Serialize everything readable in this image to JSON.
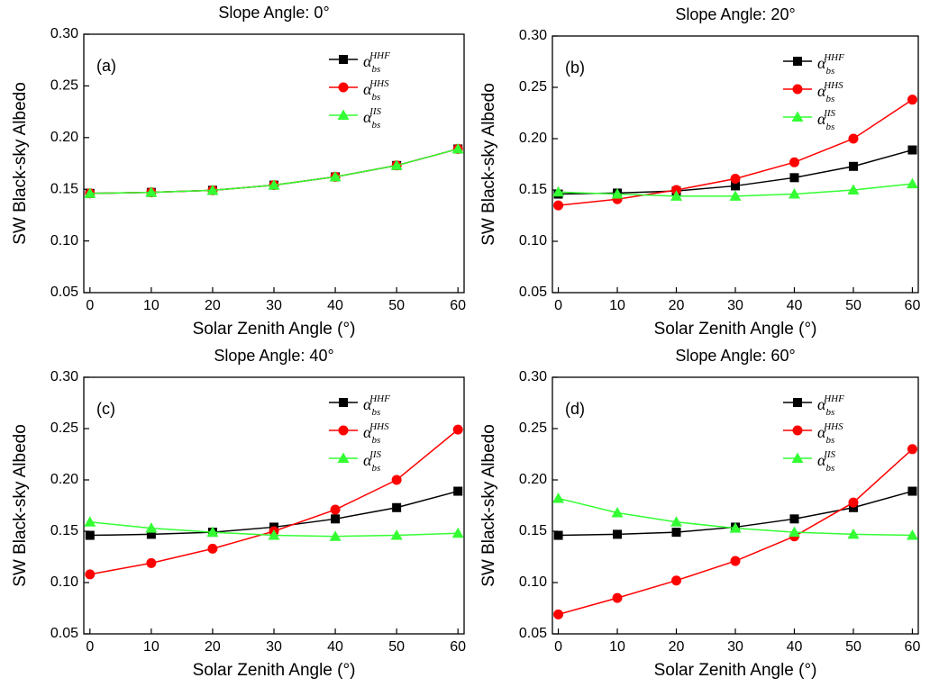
{
  "chart_data": [
    {
      "type": "line",
      "title": "Slope Angle: 0°",
      "panel_label": "(a)",
      "xlabel": "Solar Zenith Angle (°)",
      "ylabel": "SW Black-sky Albedo",
      "legend_symbol": "α",
      "legend_subscript": "bs",
      "legend": "upper right",
      "x": [
        0,
        10,
        20,
        30,
        40,
        50,
        60
      ],
      "xlim": [
        -1,
        61
      ],
      "xticks": [
        0,
        10,
        20,
        30,
        40,
        50,
        60
      ],
      "ylim": [
        0.05,
        0.3
      ],
      "yticks": [
        0.05,
        {
          "value": 0.1,
          "label": "0.10"
        },
        0.15,
        {
          "value": 0.2,
          "label": "0.20"
        },
        0.25,
        {
          "value": 0.3,
          "label": "0.30"
        }
      ],
      "series": [
        {
          "name": "HHF",
          "color": "#000000",
          "marker": "square",
          "values": [
            0.146,
            0.147,
            0.149,
            0.154,
            0.162,
            0.173,
            0.189
          ]
        },
        {
          "name": "HHS",
          "color": "#ff0000",
          "marker": "circle",
          "values": [
            0.146,
            0.147,
            0.149,
            0.154,
            0.162,
            0.173,
            0.189
          ]
        },
        {
          "name": "IIS",
          "color": "#33ff33",
          "marker": "triangle",
          "values": [
            0.146,
            0.147,
            0.149,
            0.154,
            0.162,
            0.173,
            0.189
          ]
        }
      ]
    },
    {
      "type": "line",
      "title": "Slope Angle: 20°",
      "panel_label": "(b)",
      "xlabel": "Solar Zenith Angle (°)",
      "ylabel": "SW Black-sky Albedo",
      "legend_symbol": "α",
      "legend_subscript": "bs",
      "legend": "upper right",
      "x": [
        0,
        10,
        20,
        30,
        40,
        50,
        60
      ],
      "xlim": [
        -1,
        61
      ],
      "xticks": [
        0,
        10,
        20,
        30,
        40,
        50,
        60
      ],
      "ylim": [
        0.05,
        0.3
      ],
      "yticks": [
        0.05,
        {
          "value": 0.1,
          "label": "0.10"
        },
        0.15,
        {
          "value": 0.2,
          "label": "0.20"
        },
        0.25,
        {
          "value": 0.3,
          "label": "0.30"
        }
      ],
      "series": [
        {
          "name": "HHF",
          "color": "#000000",
          "marker": "square",
          "values": [
            0.146,
            0.147,
            0.149,
            0.154,
            0.162,
            0.173,
            0.189
          ]
        },
        {
          "name": "HHS",
          "color": "#ff0000",
          "marker": "circle",
          "values": [
            0.135,
            0.141,
            0.15,
            0.161,
            0.177,
            0.2,
            0.238
          ]
        },
        {
          "name": "IIS",
          "color": "#33ff33",
          "marker": "triangle",
          "values": [
            0.148,
            0.146,
            0.144,
            0.144,
            0.146,
            0.15,
            0.156
          ]
        }
      ]
    },
    {
      "type": "line",
      "title": "Slope Angle: 40°",
      "panel_label": "(c)",
      "xlabel": "Solar Zenith Angle (°)",
      "ylabel": "SW Black-sky Albedo",
      "legend_symbol": "α",
      "legend_subscript": "bs",
      "legend": "upper right",
      "x": [
        0,
        10,
        20,
        30,
        40,
        50,
        60
      ],
      "xlim": [
        -1,
        61
      ],
      "xticks": [
        0,
        10,
        20,
        30,
        40,
        50,
        60
      ],
      "ylim": [
        0.05,
        0.3
      ],
      "yticks": [
        0.05,
        {
          "value": 0.1,
          "label": "0.10"
        },
        0.15,
        {
          "value": 0.2,
          "label": "0.20"
        },
        0.25,
        {
          "value": 0.3,
          "label": "0.30"
        }
      ],
      "series": [
        {
          "name": "HHF",
          "color": "#000000",
          "marker": "square",
          "values": [
            0.146,
            0.147,
            0.149,
            0.154,
            0.162,
            0.173,
            0.189
          ]
        },
        {
          "name": "HHS",
          "color": "#ff0000",
          "marker": "circle",
          "values": [
            0.108,
            0.119,
            0.133,
            0.15,
            0.171,
            0.2,
            0.249
          ]
        },
        {
          "name": "IIS",
          "color": "#33ff33",
          "marker": "triangle",
          "values": [
            0.159,
            0.153,
            0.149,
            0.146,
            0.145,
            0.146,
            0.148
          ]
        }
      ]
    },
    {
      "type": "line",
      "title": "Slope Angle: 60°",
      "panel_label": "(d)",
      "xlabel": "Solar Zenith Angle (°)",
      "ylabel": "SW Black-sky Albedo",
      "legend_symbol": "α",
      "legend_subscript": "bs",
      "legend": "upper right",
      "x": [
        0,
        10,
        20,
        30,
        40,
        50,
        60
      ],
      "xlim": [
        -1,
        61
      ],
      "xticks": [
        0,
        10,
        20,
        30,
        40,
        50,
        60
      ],
      "ylim": [
        0.05,
        0.3
      ],
      "yticks": [
        0.05,
        {
          "value": 0.1,
          "label": "0.10"
        },
        0.15,
        {
          "value": 0.2,
          "label": "0.20"
        },
        0.25,
        {
          "value": 0.3,
          "label": "0.30"
        }
      ],
      "series": [
        {
          "name": "HHF",
          "color": "#000000",
          "marker": "square",
          "values": [
            0.146,
            0.147,
            0.149,
            0.154,
            0.162,
            0.173,
            0.189
          ]
        },
        {
          "name": "HHS",
          "color": "#ff0000",
          "marker": "circle",
          "values": [
            0.069,
            0.085,
            0.102,
            0.121,
            0.145,
            0.178,
            0.23
          ]
        },
        {
          "name": "IIS",
          "color": "#33ff33",
          "marker": "triangle",
          "values": [
            0.182,
            0.168,
            0.159,
            0.153,
            0.149,
            0.147,
            0.146
          ]
        }
      ]
    }
  ]
}
